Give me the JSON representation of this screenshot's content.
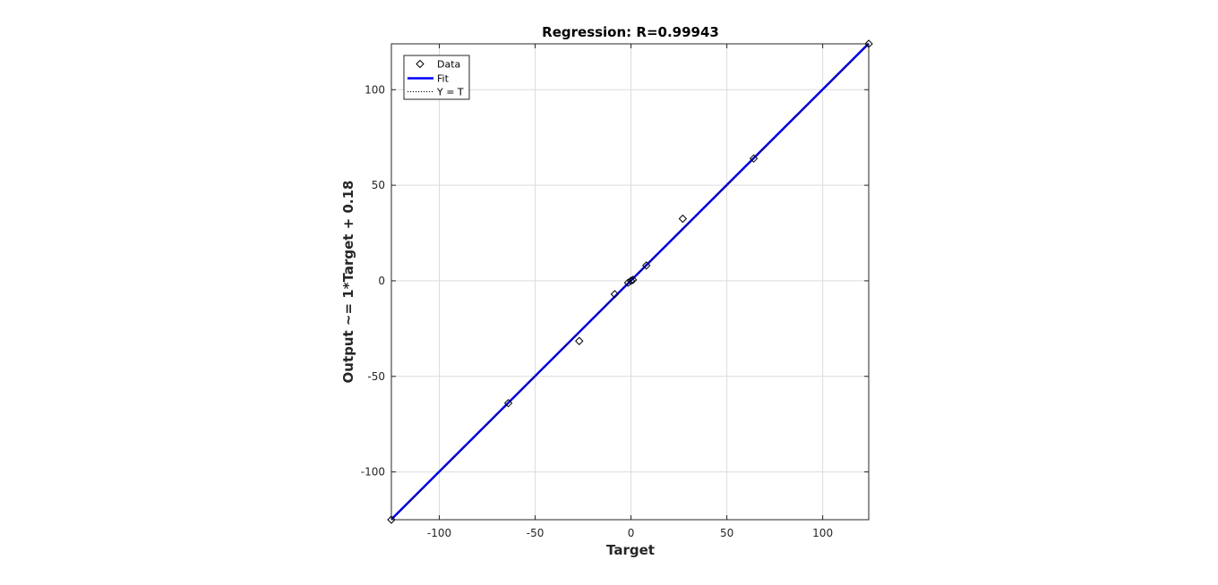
{
  "chart_data": {
    "type": "scatter",
    "title": "Regression: R=0.99943",
    "xlabel": "Target",
    "ylabel": "Output ~= 1*Target + 0.18",
    "xlim": [
      -125,
      124
    ],
    "ylim": [
      -125,
      124
    ],
    "xticks": [
      -100,
      -50,
      0,
      50,
      100
    ],
    "yticks": [
      -100,
      -50,
      0,
      50,
      100
    ],
    "grid": true,
    "legend": {
      "placement": "top-left",
      "entries": [
        "Data",
        "Fit",
        "Y = T"
      ]
    },
    "series": [
      {
        "name": "Data",
        "marker": "diamond",
        "color": "#000000",
        "points": [
          {
            "x": -125,
            "y": -125
          },
          {
            "x": -64,
            "y": -64
          },
          {
            "x": -27,
            "y": -31.5
          },
          {
            "x": -8.5,
            "y": -7
          },
          {
            "x": -1.5,
            "y": -1
          },
          {
            "x": 0,
            "y": 0
          },
          {
            "x": 1,
            "y": 0.5
          },
          {
            "x": 8,
            "y": 8
          },
          {
            "x": 27,
            "y": 32.5
          },
          {
            "x": 64,
            "y": 64
          },
          {
            "x": 124,
            "y": 124
          }
        ]
      },
      {
        "name": "Fit",
        "kind": "line",
        "color": "#0000ff",
        "slope": 1,
        "intercept": 0.18
      },
      {
        "name": "Y = T",
        "kind": "line",
        "color": "#000000",
        "dash": "dotted",
        "slope": 1,
        "intercept": 0
      }
    ]
  }
}
